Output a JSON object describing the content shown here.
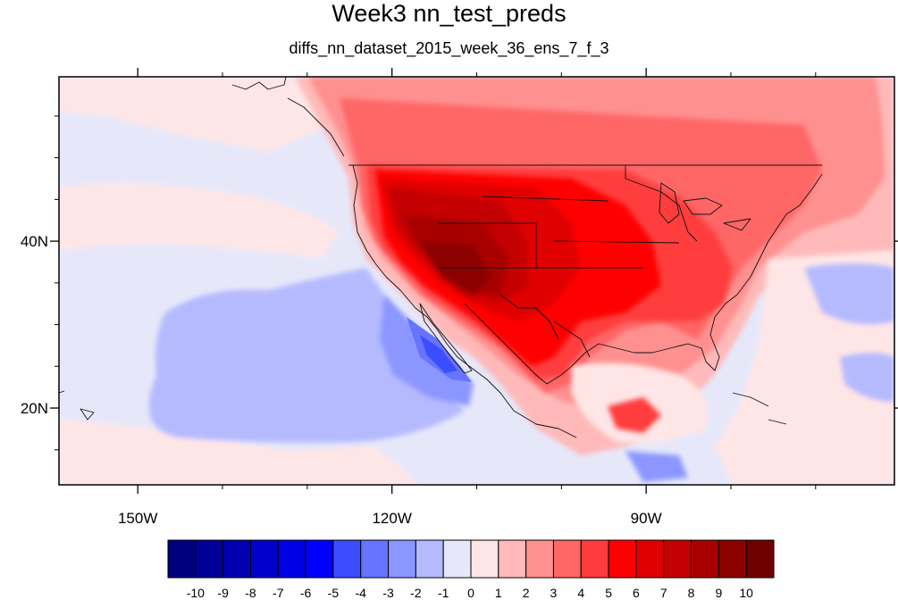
{
  "title": "Week3 nn_test_preds",
  "subtitle": "diffs_nn_dataset_2015_week_36_ens_7_f_3",
  "map": {
    "projection": "cylindrical-equidistant",
    "lon_range": [
      -159.3,
      -60.7
    ],
    "lat_range": [
      10.8,
      59.7
    ],
    "lon_ticks": [
      {
        "value": -150,
        "label": "150W"
      },
      {
        "value": -120,
        "label": "120W"
      },
      {
        "value": -90,
        "label": "90W"
      }
    ],
    "lat_ticks": [
      {
        "value": 40,
        "label": "40N"
      },
      {
        "value": 20,
        "label": "20N"
      }
    ],
    "background_color": "#e6e8fa",
    "coastline_color": "#111111"
  },
  "colorbar": {
    "levels": [
      "-10",
      "-9",
      "-8",
      "-7",
      "-6",
      "-5",
      "-4",
      "-3",
      "-2",
      "-1",
      "0",
      "1",
      "2",
      "3",
      "4",
      "5",
      "6",
      "7",
      "8",
      "9",
      "10"
    ],
    "colors": [
      "#00007f",
      "#000096",
      "#0000b0",
      "#0000cc",
      "#0000e6",
      "#0000ff",
      "#3c4dff",
      "#6674ff",
      "#8c96ff",
      "#b5baff",
      "#e6e8fa",
      "#ffe6e6",
      "#ffb9b9",
      "#ff9090",
      "#ff6666",
      "#ff3c3c",
      "#ff0000",
      "#e00000",
      "#c40000",
      "#a80000",
      "#8c0000",
      "#700000"
    ]
  }
}
